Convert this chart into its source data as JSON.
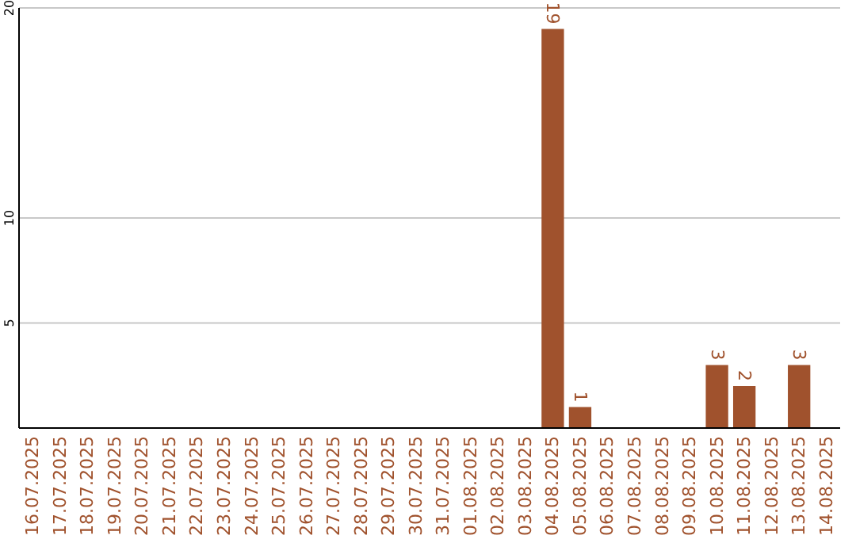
{
  "chart_data": {
    "type": "bar",
    "categories": [
      "16.07.2025",
      "17.07.2025",
      "18.07.2025",
      "19.07.2025",
      "20.07.2025",
      "21.07.2025",
      "22.07.2025",
      "23.07.2025",
      "24.07.2025",
      "25.07.2025",
      "26.07.2025",
      "27.07.2025",
      "28.07.2025",
      "29.07.2025",
      "30.07.2025",
      "31.07.2025",
      "01.08.2025",
      "02.08.2025",
      "03.08.2025",
      "04.08.2025",
      "05.08.2025",
      "06.08.2025",
      "07.08.2025",
      "08.08.2025",
      "09.08.2025",
      "10.08.2025",
      "11.08.2025",
      "12.08.2025",
      "13.08.2025",
      "14.08.2025"
    ],
    "values": [
      0,
      0,
      0,
      0,
      0,
      0,
      0,
      0,
      0,
      0,
      0,
      0,
      0,
      0,
      0,
      0,
      0,
      0,
      0,
      19,
      1,
      0,
      0,
      0,
      0,
      3,
      2,
      0,
      3,
      0
    ],
    "value_labels": [
      null,
      null,
      null,
      null,
      null,
      null,
      null,
      null,
      null,
      null,
      null,
      null,
      null,
      null,
      null,
      null,
      null,
      null,
      null,
      "19",
      "1",
      null,
      null,
      null,
      null,
      "3",
      "2",
      null,
      "3",
      null
    ],
    "color": "#a0522d",
    "ylim": [
      0,
      20
    ],
    "yticks": [
      5,
      10,
      20
    ],
    "grid": "y"
  }
}
